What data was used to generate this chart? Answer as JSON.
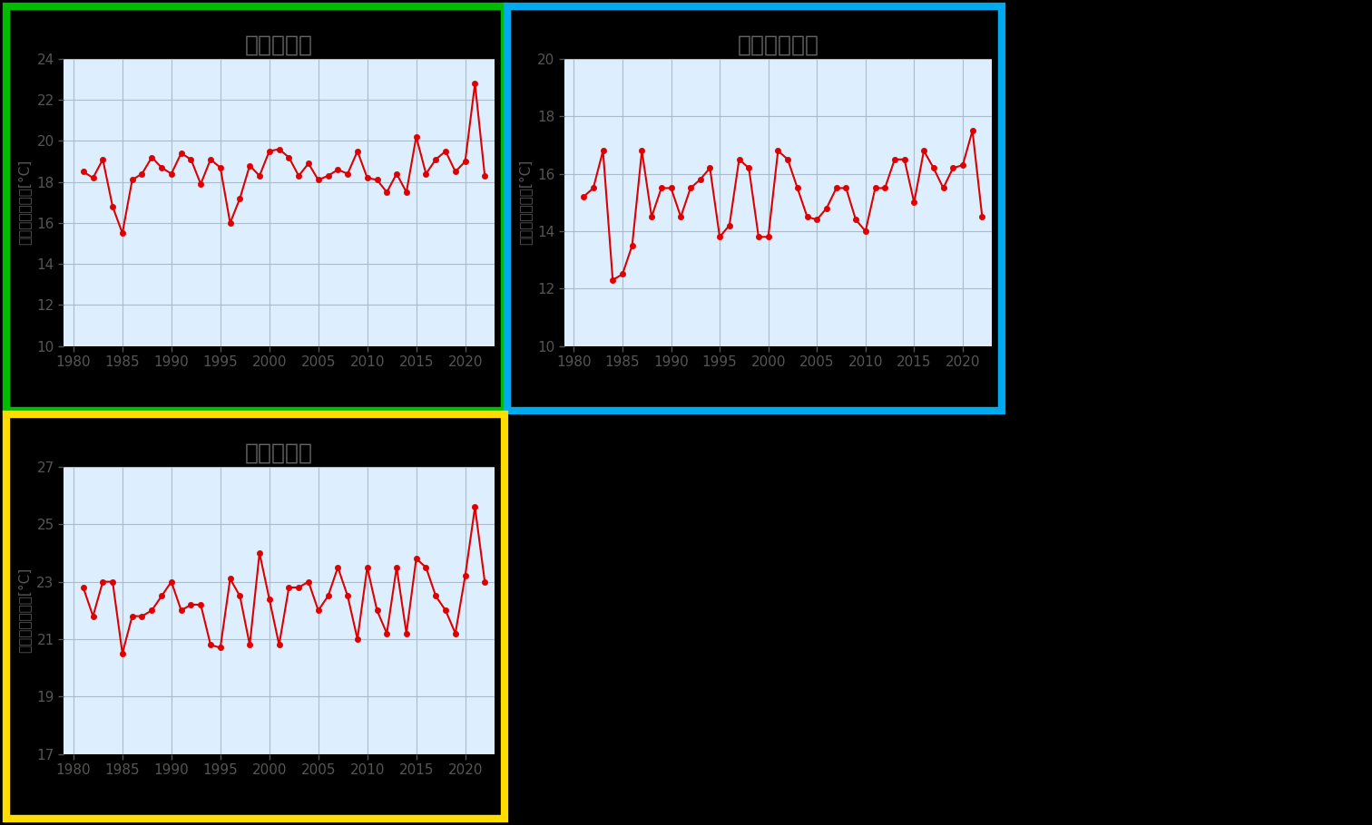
{
  "panel1": {
    "title": "日本海北部",
    "border_color": "#00bb00",
    "years": [
      1981,
      1982,
      1983,
      1984,
      1985,
      1986,
      1987,
      1988,
      1989,
      1990,
      1991,
      1992,
      1993,
      1994,
      1995,
      1996,
      1997,
      1998,
      1999,
      2000,
      2001,
      2002,
      2003,
      2004,
      2005,
      2006,
      2007,
      2008,
      2009,
      2010,
      2011,
      2012,
      2013,
      2014,
      2015,
      2016,
      2017,
      2018,
      2019,
      2020,
      2021,
      2022
    ],
    "values": [
      18.5,
      18.2,
      19.1,
      16.8,
      15.5,
      18.1,
      18.4,
      19.2,
      18.7,
      18.4,
      19.4,
      19.1,
      17.9,
      19.1,
      18.7,
      16.0,
      17.2,
      18.8,
      18.3,
      19.5,
      19.6,
      19.2,
      18.3,
      18.9,
      18.1,
      18.3,
      18.6,
      18.4,
      19.5,
      18.2,
      18.1,
      17.5,
      18.4,
      17.5,
      20.2,
      18.4,
      19.1,
      19.5,
      18.5,
      19.0,
      22.8,
      18.3
    ],
    "ylim": [
      10,
      24
    ],
    "yticks": [
      10,
      12,
      14,
      16,
      18,
      20,
      22,
      24
    ],
    "ylabel": "月平均海面水温[°C]"
  },
  "panel2": {
    "title": "北海道南東方",
    "border_color": "#00aaee",
    "years": [
      1981,
      1982,
      1983,
      1984,
      1985,
      1986,
      1987,
      1988,
      1989,
      1990,
      1991,
      1992,
      1993,
      1994,
      1995,
      1996,
      1997,
      1998,
      1999,
      2000,
      2001,
      2002,
      2003,
      2004,
      2005,
      2006,
      2007,
      2008,
      2009,
      2010,
      2011,
      2012,
      2013,
      2014,
      2015,
      2016,
      2017,
      2018,
      2019,
      2020,
      2021,
      2022
    ],
    "values": [
      15.2,
      15.5,
      16.8,
      12.3,
      12.5,
      13.5,
      16.8,
      14.5,
      15.5,
      15.5,
      14.5,
      15.5,
      15.8,
      16.2,
      13.8,
      14.2,
      16.5,
      16.2,
      13.8,
      13.8,
      16.8,
      16.5,
      15.5,
      14.5,
      14.4,
      14.8,
      15.5,
      15.5,
      14.4,
      14.0,
      15.5,
      15.5,
      16.5,
      16.5,
      15.0,
      16.8,
      16.2,
      15.5,
      16.2,
      16.3,
      17.5,
      14.5
    ],
    "ylim": [
      10,
      20
    ],
    "yticks": [
      10,
      12,
      14,
      16,
      18,
      20
    ],
    "ylabel": "月平均海面水温[°C]"
  },
  "panel3": {
    "title": "日本海南部",
    "border_color": "#ffdd00",
    "years": [
      1981,
      1982,
      1983,
      1984,
      1985,
      1986,
      1987,
      1988,
      1989,
      1990,
      1991,
      1992,
      1993,
      1994,
      1995,
      1996,
      1997,
      1998,
      1999,
      2000,
      2001,
      2002,
      2003,
      2004,
      2005,
      2006,
      2007,
      2008,
      2009,
      2010,
      2011,
      2012,
      2013,
      2014,
      2015,
      2016,
      2017,
      2018,
      2019,
      2020,
      2021,
      2022
    ],
    "values": [
      22.8,
      21.8,
      23.0,
      23.0,
      20.5,
      21.8,
      21.8,
      22.0,
      22.5,
      23.0,
      22.0,
      22.2,
      22.2,
      20.8,
      20.7,
      23.1,
      22.5,
      20.8,
      24.0,
      22.4,
      20.8,
      22.8,
      22.8,
      23.0,
      22.0,
      22.5,
      23.5,
      22.5,
      21.0,
      23.5,
      22.0,
      21.2,
      23.5,
      21.2,
      23.8,
      23.5,
      22.5,
      22.0,
      21.2,
      23.2,
      25.6,
      23.0
    ],
    "ylim": [
      17,
      27
    ],
    "yticks": [
      17,
      19,
      21,
      23,
      25,
      27
    ],
    "ylabel": "月平均海面水温[°C]"
  },
  "line_color": "#dd0000",
  "marker_color": "#dd0000",
  "plot_bg_color": "#ddeeff",
  "fig_bg_color": "#000000",
  "grid_color": "#aabbcc",
  "tick_label_color": "#555555",
  "title_color": "#666666",
  "ylabel_color": "#555555",
  "xticks": [
    1980,
    1985,
    1990,
    1995,
    2000,
    2005,
    2010,
    2015,
    2020
  ],
  "title_fontsize": 18,
  "tick_fontsize": 11,
  "ylabel_fontsize": 11
}
